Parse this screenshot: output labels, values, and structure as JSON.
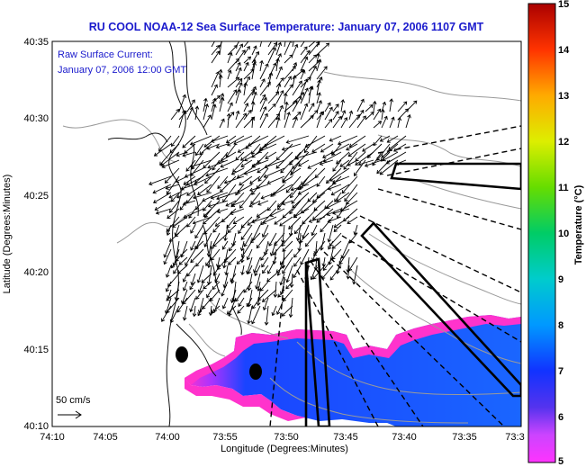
{
  "title": "RU COOL  NOAA-12  Sea Surface Temperature:  January 07, 2006 1107 GMT",
  "current_label": "Raw Surface Current:",
  "current_time": "January 07, 2006 12:00 GMT",
  "scale_label": "50 cm/s",
  "x_axis_label": "Longitude (Degrees:Minutes)",
  "y_axis_label": "Latitude (Degrees:Minutes)",
  "colorbar_label": "Temperature (°C)",
  "x_ticks": [
    "74:10",
    "74:05",
    "74:00",
    "73:55",
    "73:50",
    "73:45",
    "73:40",
    "73:35",
    "73:3"
  ],
  "y_ticks": [
    "40:35",
    "40:30",
    "40:25",
    "40:20",
    "40:15",
    "40:10"
  ],
  "colorbar_ticks": [
    "15",
    "14",
    "13",
    "12",
    "11",
    "10",
    "9",
    "8",
    "7",
    "6",
    "5"
  ],
  "colors": {
    "title": "#1a1acc",
    "land_outline": "#000000",
    "contours": "#999999",
    "sst_low": "#ff33cc",
    "sst_high": "#1a55ff"
  },
  "chart_data": {
    "type": "map",
    "xlim": [
      "74:10",
      "73:30"
    ],
    "ylim": [
      "40:10",
      "40:35"
    ],
    "colorbar_range": [
      5,
      15
    ],
    "colorbar_units": "°C"
  }
}
